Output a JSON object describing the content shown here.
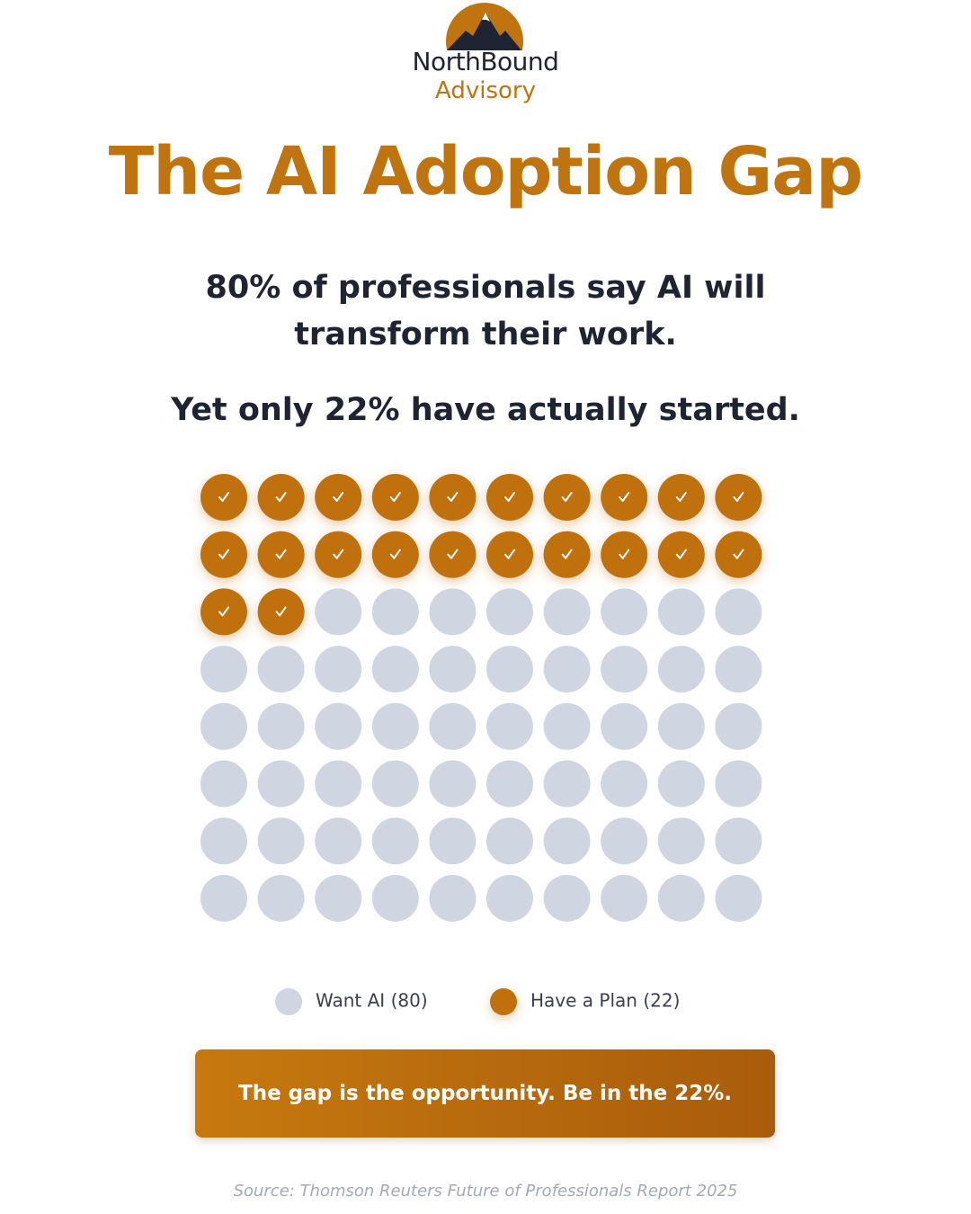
{
  "header": {
    "brand": "NorthBound",
    "brand_sub": "Advisory"
  },
  "chart_data": {
    "type": "waffle",
    "title": "The AI Adoption Gap",
    "subtitle": "80% of professionals say AI will transform their work.",
    "subtitle_2": "Yet only 22% have actually started.",
    "series": [
      {
        "name": "Want AI (80)",
        "color": "#cfd6e2",
        "values": [
          80
        ]
      },
      {
        "name": "Have a Plan (22)",
        "color": "#c0700f",
        "values": [
          22
        ]
      }
    ],
    "callout": "The gap is the opportunity. Be in the 22%.",
    "source": "Source: Thomson Reuters Future of Professionals Report 2025"
  }
}
